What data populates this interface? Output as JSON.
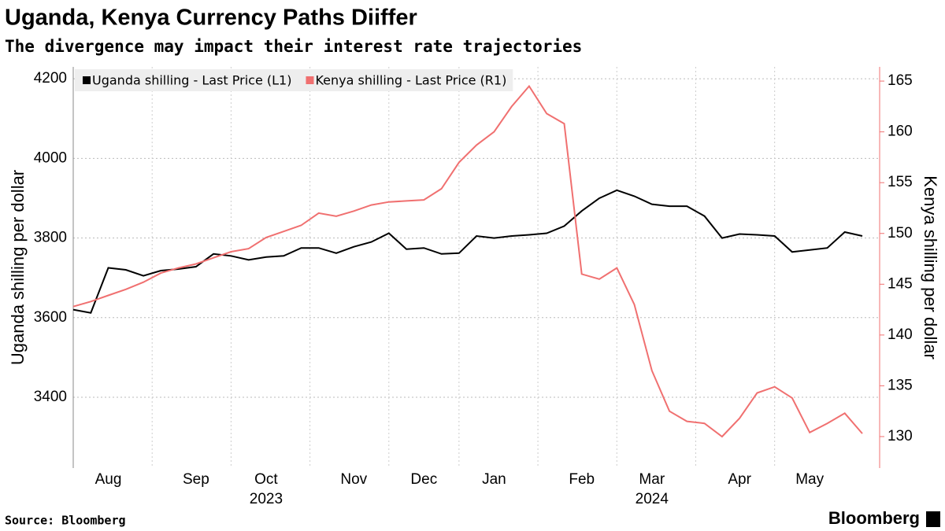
{
  "title": "Uganda, Kenya Currency Paths Diiffer",
  "subtitle": "The divergence may impact their interest rate trajectories",
  "source": "Source: Bloomberg",
  "brand": "Bloomberg",
  "chart_data": {
    "type": "line",
    "categories": [
      null,
      null,
      "Aug",
      null,
      null,
      null,
      null,
      "Sep",
      null,
      null,
      null,
      "Oct",
      null,
      null,
      null,
      null,
      "Nov",
      null,
      null,
      null,
      "Dec",
      null,
      null,
      null,
      "Jan",
      null,
      null,
      null,
      null,
      "Feb",
      null,
      null,
      null,
      "Mar",
      null,
      null,
      null,
      null,
      "Apr",
      null,
      null,
      null,
      "May",
      null,
      null,
      null
    ],
    "x_years": [
      null,
      null,
      null,
      null,
      null,
      null,
      null,
      null,
      null,
      null,
      null,
      "2023",
      null,
      null,
      null,
      null,
      null,
      null,
      null,
      null,
      null,
      null,
      null,
      null,
      null,
      null,
      null,
      null,
      null,
      null,
      null,
      null,
      null,
      "2024",
      null,
      null,
      null,
      null,
      null,
      null,
      null,
      null,
      null,
      null,
      null,
      null
    ],
    "ylabel": "Uganda shilling per dollar",
    "y2label": "Kenya shilling per dollar",
    "ylim": [
      3222,
      4230
    ],
    "yticks": [
      3400,
      3600,
      3800,
      4000,
      4200
    ],
    "y2lim": [
      126.9,
      166.4
    ],
    "y2ticks": [
      130,
      135,
      140,
      145,
      150,
      155,
      160,
      165
    ],
    "grid": true,
    "series": [
      {
        "name": "Uganda shilling - Last Price (L1)",
        "color": "#000000",
        "values": [
          3620,
          3612,
          3725,
          3720,
          3705,
          3718,
          3722,
          3728,
          3760,
          3755,
          3745,
          3752,
          3755,
          3775,
          3775,
          3762,
          3778,
          3790,
          3812,
          3772,
          3775,
          3760,
          3762,
          3805,
          3800,
          3805,
          3808,
          3812,
          3830,
          3868,
          3900,
          3920,
          3905,
          3885,
          3880,
          3880,
          3855,
          3800,
          3810,
          3808,
          3805,
          3765,
          3770,
          3775,
          3815,
          3805
        ]
      },
      {
        "name": "Kenya shilling - Last Price (R1)",
        "color": "#f07070",
        "axis": "y2",
        "values": [
          142.8,
          143.3,
          143.9,
          144.5,
          145.2,
          146.1,
          146.6,
          147.0,
          147.6,
          148.2,
          148.5,
          149.6,
          150.2,
          150.8,
          152.0,
          151.7,
          152.2,
          152.8,
          153.1,
          153.2,
          153.3,
          154.4,
          157.0,
          158.7,
          160.0,
          162.5,
          164.5,
          161.8,
          160.8,
          146.0,
          145.5,
          146.6,
          143.0,
          136.5,
          132.5,
          131.5,
          131.3,
          130.0,
          131.8,
          134.3,
          134.9,
          133.8,
          130.4,
          131.3,
          132.3,
          130.3
        ]
      }
    ]
  }
}
